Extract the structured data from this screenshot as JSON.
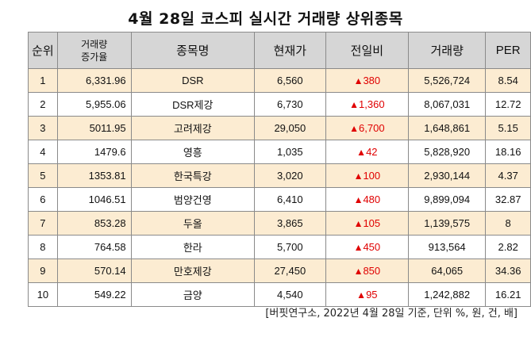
{
  "title": "4월 28일 코스피 실시간 거래량 상위종목",
  "headers": {
    "rank": "순위",
    "increase_line1": "거래량",
    "increase_line2": "증가율",
    "name": "종목명",
    "price": "현재가",
    "change": "전일비",
    "volume": "거래량",
    "per": "PER"
  },
  "up_arrow": "▲",
  "rows": [
    {
      "rank": "1",
      "increase": "6,331.96",
      "name": "DSR",
      "price": "6,560",
      "change": "380",
      "volume": "5,526,724",
      "per": "8.54"
    },
    {
      "rank": "2",
      "increase": "5,955.06",
      "name": "DSR제강",
      "price": "6,730",
      "change": "1,360",
      "volume": "8,067,031",
      "per": "12.72"
    },
    {
      "rank": "3",
      "increase": "5011.95",
      "name": "고려제강",
      "price": "29,050",
      "change": "6,700",
      "volume": "1,648,861",
      "per": "5.15"
    },
    {
      "rank": "4",
      "increase": "1479.6",
      "name": "영흥",
      "price": "1,035",
      "change": "42",
      "volume": "5,828,920",
      "per": "18.16"
    },
    {
      "rank": "5",
      "increase": "1353.81",
      "name": "한국특강",
      "price": "3,020",
      "change": "100",
      "volume": "2,930,144",
      "per": "4.37"
    },
    {
      "rank": "6",
      "increase": "1046.51",
      "name": "범양건영",
      "price": "6,410",
      "change": "480",
      "volume": "9,899,094",
      "per": "32.87"
    },
    {
      "rank": "7",
      "increase": "853.28",
      "name": "두올",
      "price": "3,865",
      "change": "105",
      "volume": "1,139,575",
      "per": "8"
    },
    {
      "rank": "8",
      "increase": "764.58",
      "name": "한라",
      "price": "5,700",
      "change": "450",
      "volume": "913,564",
      "per": "2.82"
    },
    {
      "rank": "9",
      "increase": "570.14",
      "name": "만호제강",
      "price": "27,450",
      "change": "850",
      "volume": "64,065",
      "per": "34.36"
    },
    {
      "rank": "10",
      "increase": "549.22",
      "name": "금양",
      "price": "4,540",
      "change": "95",
      "volume": "1,242,882",
      "per": "16.21"
    }
  ],
  "colors": {
    "header_bg": "#d6d6d6",
    "odd_row_bg": "#fcecd2",
    "up": "#e00000"
  },
  "source": "[버핏연구소, 2022년 4월 28일 기준, 단위 %, 원, 건, 배]"
}
